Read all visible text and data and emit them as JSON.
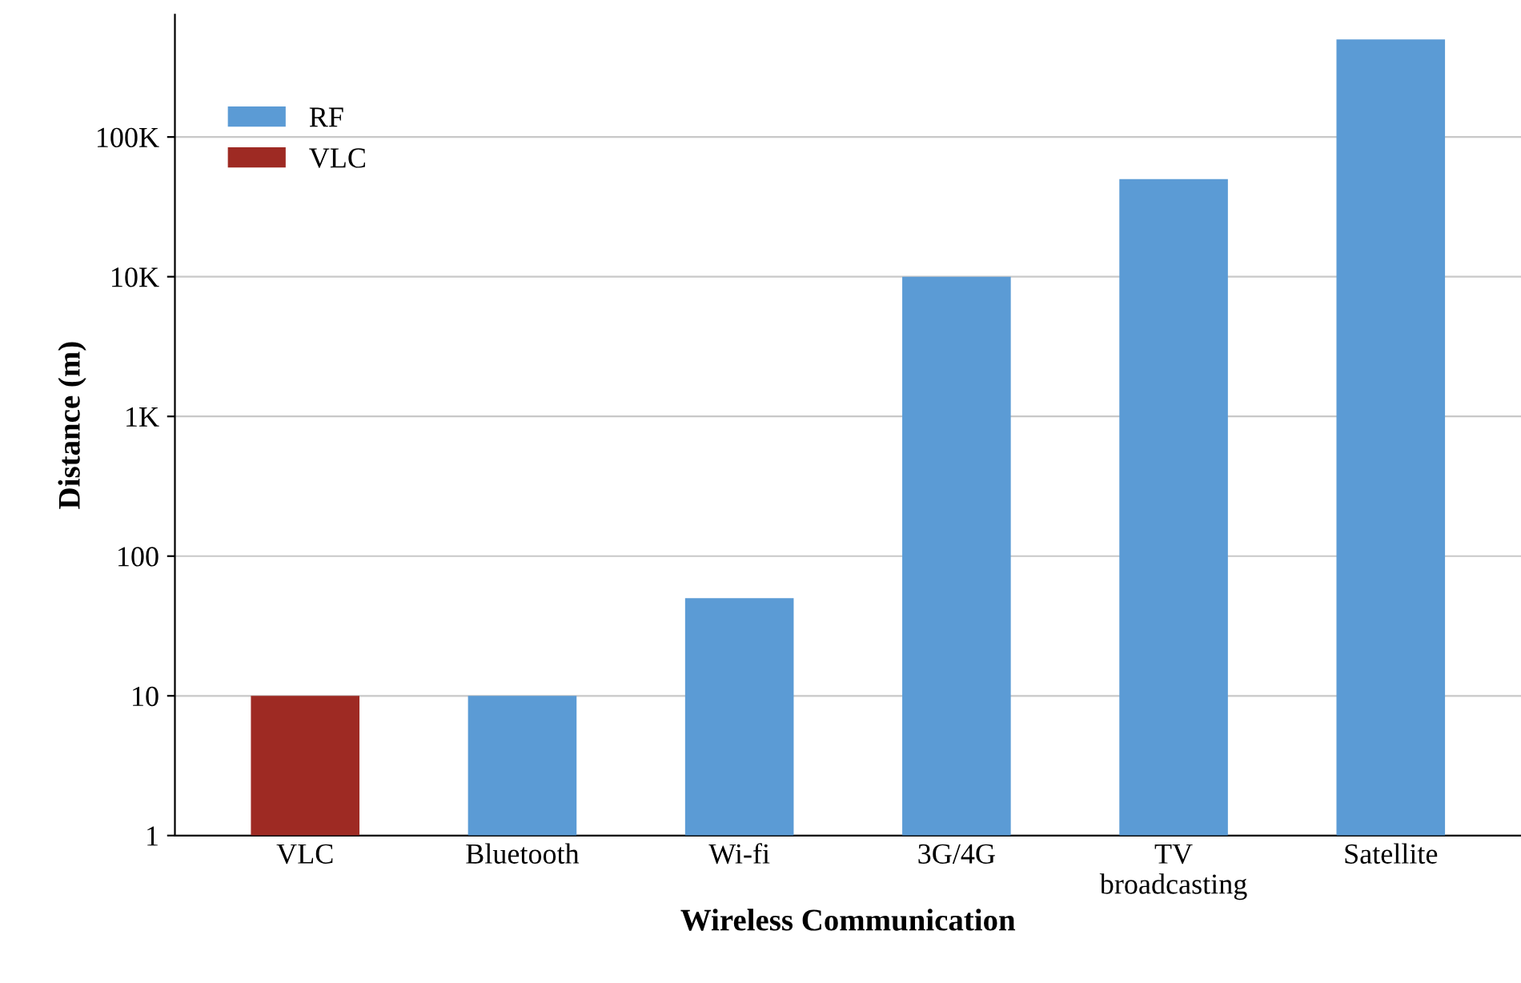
{
  "chart_data": {
    "type": "bar",
    "xlabel": "Wireless Communication",
    "ylabel": "Distance (m)",
    "categories": [
      "VLC",
      "Bluetooth",
      "Wi-fi",
      "3G/4G",
      "TV\nbroadcasting",
      "Satellite"
    ],
    "series": [
      {
        "name": "RF",
        "color": "#5b9bd5",
        "values": [
          null,
          10,
          50,
          10000,
          50000,
          500000
        ]
      },
      {
        "name": "VLC",
        "color": "#9e2a23",
        "values": [
          10,
          null,
          null,
          null,
          null,
          null
        ]
      }
    ],
    "log": "y",
    "ylim": [
      1,
      750000
    ],
    "yticks": [
      1,
      10,
      100,
      {
        "value": 1000,
        "label": "1K"
      },
      {
        "value": 10000,
        "label": "10K"
      },
      {
        "value": 100000,
        "label": "100K"
      }
    ],
    "grid": "y",
    "legend": "top left"
  }
}
